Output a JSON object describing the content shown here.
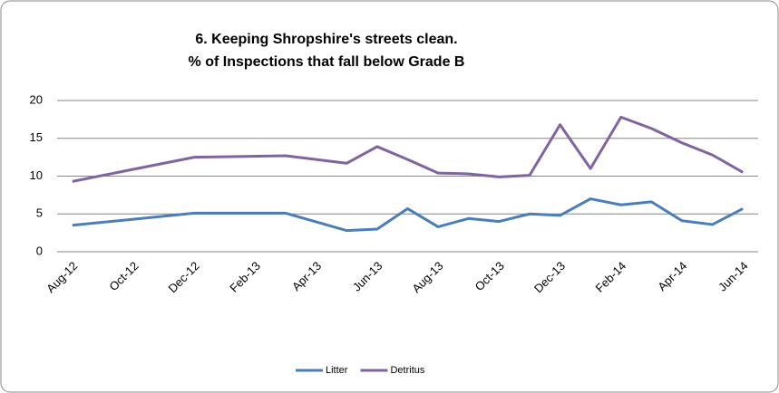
{
  "chart_data": {
    "type": "line",
    "title_lines": [
      "6. Keeping Shropshire's streets clean.",
      "% of Inspections that fall below Grade B"
    ],
    "categories": [
      "Aug-12",
      null,
      "Oct-12",
      null,
      "Dec-12",
      null,
      "Feb-13",
      null,
      "Apr-13",
      null,
      "Jun-13",
      null,
      "Aug-13",
      null,
      "Oct-13",
      null,
      "Dec-13",
      null,
      "Feb-14",
      null,
      "Apr-14",
      null,
      "Jun-14"
    ],
    "series": [
      {
        "name": "Litter",
        "color": "#4a7ebb",
        "values": [
          3.5,
          null,
          null,
          null,
          5.1,
          null,
          null,
          5.1,
          null,
          2.8,
          3.0,
          5.7,
          3.3,
          4.4,
          4.0,
          5.0,
          4.8,
          7.0,
          6.2,
          6.6,
          4.1,
          3.6,
          5.7
        ]
      },
      {
        "name": "Detritus",
        "color": "#8064a2",
        "values": [
          9.3,
          null,
          null,
          null,
          12.5,
          null,
          null,
          12.7,
          null,
          11.7,
          13.9,
          12.2,
          10.4,
          10.3,
          9.9,
          10.1,
          16.8,
          11.0,
          17.8,
          16.3,
          14.4,
          12.8,
          10.5
        ]
      }
    ],
    "span_gaps": true,
    "ylim": [
      0,
      20
    ],
    "yticks": [
      0,
      5,
      10,
      15,
      20
    ],
    "grid": true,
    "legend": "bottom"
  }
}
